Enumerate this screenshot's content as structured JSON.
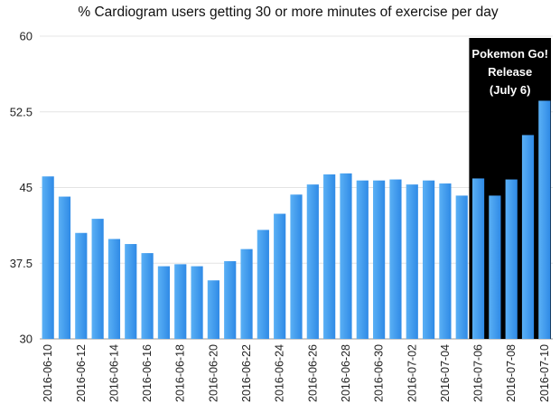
{
  "chart_data": {
    "type": "bar",
    "title": "% Cardiogram users getting 30 or more minutes of exercise per day",
    "xlabel": "",
    "ylabel": "",
    "ylim": [
      30,
      60
    ],
    "yticks": [
      30,
      37.5,
      45,
      52.5,
      60
    ],
    "ytick_labels": [
      "30",
      "37.5",
      "45",
      "52.5",
      "60"
    ],
    "grid": "horizontal",
    "categories": [
      "2016-06-10",
      "2016-06-11",
      "2016-06-12",
      "2016-06-13",
      "2016-06-14",
      "2016-06-15",
      "2016-06-16",
      "2016-06-17",
      "2016-06-18",
      "2016-06-19",
      "2016-06-20",
      "2016-06-21",
      "2016-06-22",
      "2016-06-23",
      "2016-06-24",
      "2016-06-25",
      "2016-06-26",
      "2016-06-27",
      "2016-06-28",
      "2016-06-29",
      "2016-06-30",
      "2016-07-01",
      "2016-07-02",
      "2016-07-03",
      "2016-07-04",
      "2016-07-05",
      "2016-07-06",
      "2016-07-07",
      "2016-07-08",
      "2016-07-09",
      "2016-07-10"
    ],
    "xtick_labels": [
      "2016-06-10",
      "2016-06-12",
      "2016-06-14",
      "2016-06-16",
      "2016-06-18",
      "2016-06-20",
      "2016-06-22",
      "2016-06-24",
      "2016-06-26",
      "2016-06-28",
      "2016-06-30",
      "2016-07-02",
      "2016-07-04",
      "2016-07-06",
      "2016-07-08",
      "2016-07-10"
    ],
    "values": [
      46.1,
      44.1,
      40.5,
      41.9,
      39.9,
      39.4,
      38.5,
      37.2,
      37.4,
      37.2,
      35.8,
      37.7,
      38.9,
      40.8,
      42.4,
      44.3,
      45.3,
      46.3,
      46.4,
      45.7,
      45.7,
      45.8,
      45.3,
      45.7,
      45.4,
      44.2,
      45.9,
      44.2,
      45.8,
      50.2,
      53.6
    ],
    "bar_color": "#2f8ae6",
    "bar_color_light": "#5ab0f5",
    "annotation": {
      "lines": [
        "Pokemon Go!",
        "Release",
        "(July 6)"
      ],
      "start_category": "2016-07-06",
      "end_category": "2016-07-10",
      "background": "#000000"
    }
  }
}
